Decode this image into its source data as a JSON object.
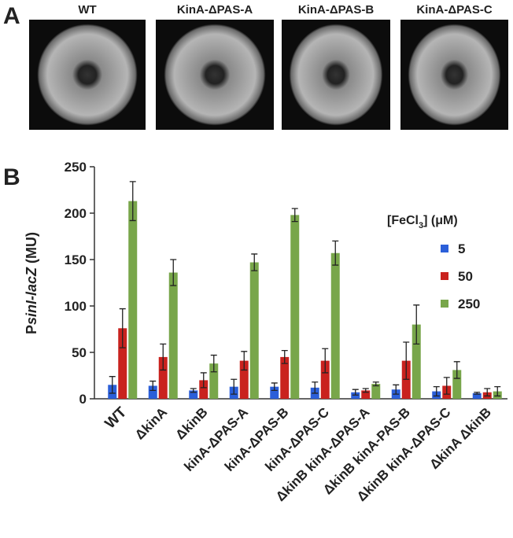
{
  "panel_a": {
    "label": "A",
    "images": [
      "WT",
      "KinA-ΔPAS-A",
      "KinA-ΔPAS-B",
      "KinA-ΔPAS-C"
    ]
  },
  "chart_data": {
    "type": "bar",
    "panel_label": "B",
    "ylabel": {
      "prefix": "P",
      "italic": "sinI-lacZ",
      "suffix": "(MU)"
    },
    "legend_title": {
      "prefix": "[FeCl",
      "sub": "3",
      "suffix": "] (μM)"
    },
    "categories": [
      "WT",
      "ΔkinA",
      "ΔkinB",
      "kinA-ΔPAS-A",
      "kinA-ΔPAS-B",
      "kinA-ΔPAS-C",
      "ΔkinB kinA-ΔPAS-A",
      "ΔkinB kinA-PAS-B",
      "ΔkinB kinA-ΔPAS-C",
      "ΔkinA ΔkinB"
    ],
    "series": [
      {
        "name": "5",
        "color": "#2b5fd9",
        "values": [
          15,
          14,
          9,
          13,
          13,
          12,
          7,
          10,
          8,
          6
        ],
        "errors": [
          9,
          5,
          2,
          8,
          4,
          6,
          3,
          5,
          5,
          1
        ]
      },
      {
        "name": "50",
        "color": "#c9221e",
        "values": [
          76,
          45,
          20,
          41,
          45,
          41,
          9,
          41,
          14,
          7
        ],
        "errors": [
          21,
          14,
          8,
          10,
          7,
          13,
          2,
          20,
          9,
          4
        ]
      },
      {
        "name": "250",
        "color": "#78a64a",
        "values": [
          213,
          136,
          38,
          147,
          198,
          157,
          16,
          80,
          31,
          8
        ],
        "errors": [
          21,
          14,
          9,
          9,
          7,
          13,
          2,
          21,
          9,
          5
        ]
      }
    ],
    "ylim": [
      0,
      250
    ],
    "yticks": [
      0,
      50,
      100,
      150,
      200,
      250
    ],
    "grid": false
  }
}
